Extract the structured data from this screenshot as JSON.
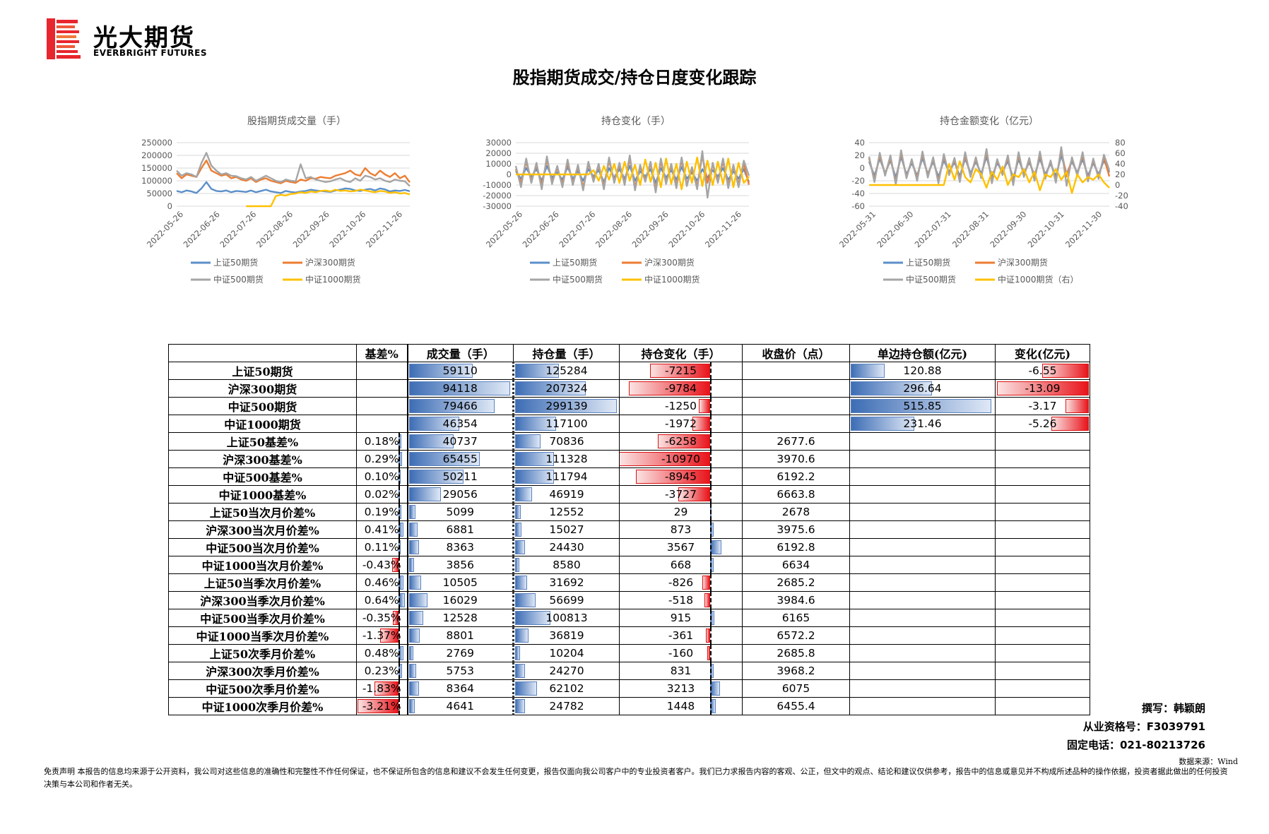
{
  "brand": {
    "name_cn": "光大期货",
    "name_en": "EVERBRIGHT FUTURES"
  },
  "main_title": "股指期货成交/持仓日度变化跟踪",
  "colors": {
    "sz50": "#5b8fc9",
    "hs300": "#ed7d31",
    "zz500": "#a5a5a5",
    "zz1000": "#ffc000",
    "brand_red": "#e8262d",
    "bar_pos": "#3d6db5",
    "bar_neg": "#e8141b"
  },
  "charts": [
    {
      "id": "volume",
      "chart_data": {
        "type": "line",
        "title": "股指期货成交量（手）",
        "x_ticks": [
          "2022-05-26",
          "2022-06-26",
          "2022-07-26",
          "2022-08-26",
          "2022-09-26",
          "2022-10-26",
          "2022-11-26"
        ],
        "y_ticks": [
          "250000",
          "200000",
          "150000",
          "100000",
          "50000",
          "0"
        ],
        "ylim": [
          0,
          250000
        ],
        "series": [
          {
            "name": "上证50期货",
            "color": "#5b8fc9",
            "values": [
              60000,
              55000,
              62000,
              58000,
              52000,
              70000,
              95000,
              68000,
              60000,
              58000,
              62000,
              55000,
              60000,
              58000,
              56000,
              62000,
              55000,
              60000,
              65000,
              58000,
              55000,
              52000,
              60000,
              56000,
              54000,
              58000,
              60000,
              65000,
              62000,
              60000,
              58000,
              56000,
              62000,
              65000,
              70000,
              68000,
              62000,
              60000,
              65000,
              68000,
              62000,
              70000,
              66000,
              58000,
              62000,
              60000,
              64000,
              59000
            ]
          },
          {
            "name": "沪深300期货",
            "color": "#ed7d31",
            "values": [
              130000,
              110000,
              125000,
              120000,
              115000,
              150000,
              180000,
              140000,
              130000,
              120000,
              125000,
              110000,
              115000,
              105000,
              100000,
              110000,
              95000,
              105000,
              110000,
              100000,
              95000,
              90000,
              100000,
              95000,
              92000,
              105000,
              100000,
              110000,
              108000,
              115000,
              112000,
              110000,
              120000,
              125000,
              130000,
              140000,
              125000,
              120000,
              150000,
              130000,
              120000,
              140000,
              125000,
              115000,
              130000,
              110000,
              120000,
              94000
            ]
          },
          {
            "name": "中证500期货",
            "color": "#a5a5a5",
            "values": [
              140000,
              120000,
              130000,
              125000,
              115000,
              170000,
              210000,
              160000,
              140000,
              125000,
              130000,
              120000,
              118000,
              110000,
              105000,
              115000,
              100000,
              110000,
              120000,
              110000,
              100000,
              95000,
              105000,
              100000,
              98000,
              165000,
              110000,
              115000,
              105000,
              100000,
              95000,
              98000,
              105000,
              110000,
              100000,
              95000,
              110000,
              100000,
              120000,
              115000,
              105000,
              110000,
              100000,
              95000,
              105000,
              100000,
              98000,
              79000
            ]
          },
          {
            "name": "中证1000期货",
            "color": "#ffc000",
            "values": [
              null,
              null,
              null,
              null,
              null,
              null,
              null,
              null,
              null,
              null,
              null,
              null,
              null,
              null,
              0,
              0,
              0,
              0,
              0,
              0,
              40000,
              45000,
              42000,
              48000,
              50000,
              55000,
              52000,
              58000,
              55000,
              60000,
              62000,
              58000,
              65000,
              60000,
              62000,
              58000,
              60000,
              65000,
              62000,
              58000,
              55000,
              60000,
              58000,
              52000,
              55000,
              50000,
              52000,
              46000
            ]
          }
        ]
      }
    },
    {
      "id": "oi_change",
      "chart_data": {
        "type": "line",
        "title": "持仓变化（手）",
        "x_ticks": [
          "2022-05-26",
          "2022-06-26",
          "2022-07-26",
          "2022-08-26",
          "2022-09-26",
          "2022-10-26",
          "2022-11-26"
        ],
        "y_ticks": [
          "30000",
          "20000",
          "10000",
          "0",
          "-10000",
          "-20000",
          "-30000"
        ],
        "ylim": [
          -30000,
          30000
        ],
        "series": [
          {
            "name": "上证50期货",
            "color": "#5b8fc9",
            "values": [
              3000,
              -4000,
              6000,
              -2000,
              5000,
              -6000,
              8000,
              -3000,
              2000,
              -5000,
              7000,
              -4000,
              3000,
              -6000,
              5000,
              -2000,
              4000,
              -7000,
              6000,
              -3000,
              5000,
              -4000,
              8000,
              -6000,
              3000,
              -2000,
              5000,
              -8000,
              6000,
              -3000,
              4000,
              -5000,
              7000,
              -4000,
              2000,
              -6000,
              5000,
              -3000,
              4000,
              -2000,
              6000,
              -5000,
              3000,
              -4000,
              5000,
              -7215
            ]
          },
          {
            "name": "沪深300期货",
            "color": "#ed7d31",
            "values": [
              5000,
              -8000,
              12000,
              -6000,
              9000,
              -10000,
              14000,
              -7000,
              6000,
              -9000,
              11000,
              -8000,
              7000,
              -12000,
              10000,
              -5000,
              8000,
              -11000,
              13000,
              -6000,
              9000,
              -8000,
              15000,
              -12000,
              7000,
              -5000,
              10000,
              -14000,
              12000,
              -7000,
              8000,
              -10000,
              13000,
              -9000,
              5000,
              -11000,
              18000,
              -8000,
              9000,
              -6000,
              12000,
              -10000,
              7000,
              -9000,
              10000,
              -9784
            ]
          },
          {
            "name": "中证500期货",
            "color": "#a5a5a5",
            "values": [
              8000,
              -12000,
              15000,
              -8000,
              11000,
              -14000,
              17000,
              -9000,
              8000,
              -12000,
              14000,
              -10000,
              9000,
              -15000,
              12000,
              -7000,
              10000,
              -14000,
              16000,
              -8000,
              11000,
              -10000,
              18000,
              -15000,
              9000,
              -7000,
              12000,
              -17000,
              15000,
              -9000,
              10000,
              -13000,
              16000,
              -11000,
              7000,
              -14000,
              22000,
              -22000,
              11000,
              -8000,
              15000,
              -13000,
              9000,
              -12000,
              13000,
              -1250
            ]
          },
          {
            "name": "中证1000期货",
            "color": "#ffc000",
            "values": [
              0,
              0,
              0,
              0,
              0,
              0,
              0,
              0,
              0,
              0,
              0,
              0,
              0,
              0,
              0,
              4000,
              -6000,
              8000,
              -5000,
              10000,
              -8000,
              12000,
              -6000,
              9000,
              -10000,
              14000,
              -7000,
              11000,
              -12000,
              15000,
              -9000,
              10000,
              -14000,
              12000,
              -8000,
              16000,
              -11000,
              13000,
              -10000,
              12000,
              -9000,
              15000,
              -12000,
              11000,
              -8000,
              -1972
            ]
          }
        ]
      }
    },
    {
      "id": "oi_amount",
      "chart_data": {
        "type": "line",
        "title": "持仓金额变化（亿元）",
        "x_ticks": [
          "2022-05-31",
          "2022-06-30",
          "2022-07-31",
          "2022-08-31",
          "2022-09-30",
          "2022-10-31",
          "2022-11-30"
        ],
        "y_ticks_left": [
          "40",
          "20",
          "0",
          "-20",
          "-40",
          "-60"
        ],
        "y_ticks_right": [
          "80",
          "60",
          "40",
          "20",
          "0",
          "-20",
          "-40"
        ],
        "ylim_left": [
          -60,
          40
        ],
        "ylim_right": [
          -40,
          80
        ],
        "series": [
          {
            "name": "上证50期货",
            "color": "#5b8fc9",
            "values": [
              10,
              -12,
              15,
              -8,
              12,
              -15,
              18,
              -10,
              8,
              -12,
              16,
              -9,
              10,
              -14,
              12,
              -6,
              9,
              -13,
              15,
              -8,
              10,
              -9,
              18,
              -14,
              8,
              -6,
              11,
              -16,
              14,
              -8,
              9,
              -11,
              15,
              -10,
              7,
              -13,
              20,
              -9,
              10,
              -7,
              14,
              -12,
              8,
              -10,
              12,
              -6.55
            ]
          },
          {
            "name": "沪深300期货",
            "color": "#ed7d31",
            "values": [
              15,
              -18,
              20,
              -10,
              16,
              -22,
              24,
              -14,
              12,
              -16,
              22,
              -12,
              14,
              -20,
              18,
              -9,
              13,
              -18,
              20,
              -12,
              14,
              -13,
              25,
              -20,
              12,
              -9,
              16,
              -22,
              20,
              -12,
              13,
              -16,
              21,
              -14,
              10,
              -19,
              28,
              -13,
              14,
              -10,
              20,
              -17,
              12,
              -14,
              17,
              -13.09
            ]
          },
          {
            "name": "中证500期货",
            "color": "#a5a5a5",
            "values": [
              18,
              -22,
              24,
              -12,
              20,
              -26,
              28,
              -16,
              14,
              -20,
              26,
              -15,
              17,
              -24,
              22,
              -11,
              16,
              -22,
              25,
              -14,
              17,
              -16,
              30,
              -24,
              14,
              -11,
              20,
              -27,
              25,
              -14,
              16,
              -20,
              26,
              -17,
              12,
              -23,
              33,
              -28,
              17,
              -12,
              25,
              -21,
              15,
              -17,
              21,
              -3.17
            ]
          },
          {
            "name": "中证1000期货（右）",
            "color": "#ffc000",
            "values": [
              0,
              0,
              0,
              0,
              0,
              0,
              0,
              0,
              0,
              0,
              0,
              0,
              0,
              0,
              0,
              40,
              10,
              45,
              15,
              5,
              30,
              20,
              -5,
              25,
              10,
              35,
              0,
              20,
              15,
              30,
              5,
              25,
              -10,
              20,
              15,
              30,
              10,
              25,
              -15,
              20,
              5,
              15,
              10,
              20,
              5,
              -5.26
            ]
          }
        ]
      }
    }
  ],
  "table": {
    "headers": [
      "",
      "基差%",
      "成交量（手）",
      "持仓量（手）",
      "持仓变化（手）",
      "收盘价（点）",
      "单边持仓额(亿元)",
      "变化(亿元)"
    ],
    "rows": [
      [
        "上证50期货",
        "",
        "59110",
        "125284",
        "-7215",
        "",
        "120.88",
        "-6.55"
      ],
      [
        "沪深300期货",
        "",
        "94118",
        "207324",
        "-9784",
        "",
        "296.64",
        "-13.09"
      ],
      [
        "中证500期货",
        "",
        "79466",
        "299139",
        "-1250",
        "",
        "515.85",
        "-3.17"
      ],
      [
        "中证1000期货",
        "",
        "46354",
        "117100",
        "-1972",
        "",
        "231.46",
        "-5.26"
      ],
      [
        "上证50基差%",
        "0.18%",
        "40737",
        "70836",
        "-6258",
        "2677.6",
        "",
        ""
      ],
      [
        "沪深300基差%",
        "0.29%",
        "65455",
        "111328",
        "-10970",
        "3970.6",
        "",
        ""
      ],
      [
        "中证500基差%",
        "0.10%",
        "50211",
        "111794",
        "-8945",
        "6192.2",
        "",
        ""
      ],
      [
        "中证1000基差%",
        "0.02%",
        "29056",
        "46919",
        "-3727",
        "6663.8",
        "",
        ""
      ],
      [
        "上证50当次月价差%",
        "0.19%",
        "5099",
        "12552",
        "29",
        "2678",
        "",
        ""
      ],
      [
        "沪深300当次月价差%",
        "0.41%",
        "6881",
        "15027",
        "873",
        "3975.6",
        "",
        ""
      ],
      [
        "中证500当次月价差%",
        "0.11%",
        "8363",
        "24430",
        "3567",
        "6192.8",
        "",
        ""
      ],
      [
        "中证1000当次月价差%",
        "-0.43%",
        "3856",
        "8580",
        "668",
        "6634",
        "",
        ""
      ],
      [
        "上证50当季次月价差%",
        "0.46%",
        "10505",
        "31692",
        "-826",
        "2685.2",
        "",
        ""
      ],
      [
        "沪深300当季次月价差%",
        "0.64%",
        "16029",
        "56699",
        "-518",
        "3984.6",
        "",
        ""
      ],
      [
        "中证500当季次月价差%",
        "-0.35%",
        "12528",
        "100813",
        "915",
        "6165",
        "",
        ""
      ],
      [
        "中证1000当季次月价差%",
        "-1.37%",
        "8801",
        "36819",
        "-361",
        "6572.2",
        "",
        ""
      ],
      [
        "上证50次季月价差%",
        "0.48%",
        "2769",
        "10204",
        "-160",
        "2685.8",
        "",
        ""
      ],
      [
        "沪深300次季月价差%",
        "0.23%",
        "5753",
        "24270",
        "831",
        "3968.2",
        "",
        ""
      ],
      [
        "中证500次季月价差%",
        "-1.83%",
        "8364",
        "62102",
        "3213",
        "6075",
        "",
        ""
      ],
      [
        "中证1000次季月价差%",
        "-3.21%",
        "4641",
        "24782",
        "1448",
        "6455.4",
        "",
        ""
      ]
    ]
  },
  "signature": {
    "author": "撰写：韩颖朗",
    "license": "从业资格号：F3039791",
    "phone": "固定电话：021-80213726"
  },
  "source": "数据来源：Wind",
  "disclaimer": "免责声明    本报告的信息均来源于公开资料，我公司对这些信息的准确性和完整性不作任何保证，也不保证所包含的信息和建议不会发生任何变更，报告仅面向我公司客户中的专业投资者客户。我们已力求报告内容的客观、公正，但文中的观点、结论和建议仅供参考，报告中的信息或意见并不构成所述品种的操作依据，投资者据此做出的任何投资决策与本公司和作者无关。"
}
